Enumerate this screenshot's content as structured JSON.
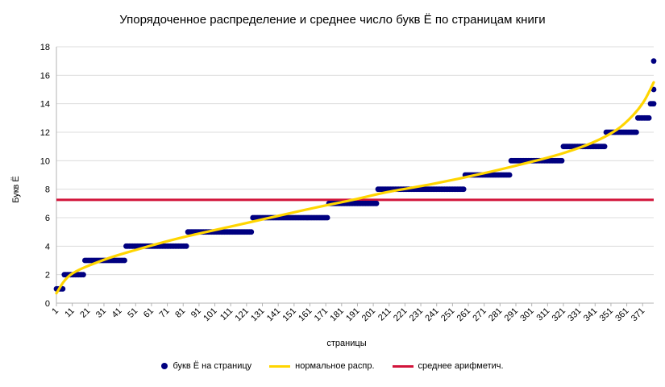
{
  "chart_data": {
    "type": "scatter",
    "title": "Упорядоченное распределение и среднее число букв Ё по страницам книги",
    "xlabel": "страницы",
    "ylabel": "Букв Ё",
    "xlim": [
      1,
      378
    ],
    "ylim": [
      0,
      18
    ],
    "y_ticks": [
      0,
      2,
      4,
      6,
      8,
      10,
      12,
      14,
      16,
      18
    ],
    "x_tick_labels": [
      "1",
      "11",
      "21",
      "31",
      "41",
      "51",
      "61",
      "71",
      "81",
      "91",
      "101",
      "111",
      "121",
      "131",
      "141",
      "151",
      "161",
      "171",
      "181",
      "191",
      "201",
      "211",
      "221",
      "231",
      "241",
      "251",
      "261",
      "271",
      "281",
      "291",
      "301",
      "311",
      "321",
      "331",
      "341",
      "351",
      "361",
      "371"
    ],
    "grid": "horizontal",
    "legend_position": "bottom",
    "series": [
      {
        "name": "букв Ё на страницу",
        "kind": "step-points",
        "color": "#000080",
        "segments": [
          {
            "x_start": 1,
            "x_end": 5,
            "y": 1
          },
          {
            "x_start": 6,
            "x_end": 18,
            "y": 2
          },
          {
            "x_start": 19,
            "x_end": 44,
            "y": 3
          },
          {
            "x_start": 45,
            "x_end": 83,
            "y": 4
          },
          {
            "x_start": 84,
            "x_end": 124,
            "y": 5
          },
          {
            "x_start": 125,
            "x_end": 172,
            "y": 6
          },
          {
            "x_start": 173,
            "x_end": 203,
            "y": 7
          },
          {
            "x_start": 204,
            "x_end": 258,
            "y": 8
          },
          {
            "x_start": 259,
            "x_end": 287,
            "y": 9
          },
          {
            "x_start": 288,
            "x_end": 320,
            "y": 10
          },
          {
            "x_start": 321,
            "x_end": 347,
            "y": 11
          },
          {
            "x_start": 348,
            "x_end": 367,
            "y": 12
          },
          {
            "x_start": 368,
            "x_end": 375,
            "y": 13
          },
          {
            "x_start": 376,
            "x_end": 378,
            "y": 14
          },
          {
            "x_start": 378,
            "x_end": 378,
            "y": 15
          },
          {
            "x_start": 378,
            "x_end": 378,
            "y": 17
          }
        ]
      },
      {
        "name": "нормальное распр.",
        "kind": "line",
        "color": "#ffd500",
        "x": [
          1,
          10,
          30,
          50,
          80,
          120,
          160,
          190,
          210,
          240,
          270,
          300,
          320,
          340,
          355,
          365,
          372,
          378
        ],
        "y": [
          0.7,
          2.0,
          3.0,
          3.7,
          4.6,
          5.6,
          6.6,
          7.3,
          7.8,
          8.4,
          9.1,
          9.9,
          10.5,
          11.3,
          12.2,
          13.2,
          14.2,
          15.5
        ]
      },
      {
        "name": "среднее арифметич.",
        "kind": "hline",
        "color": "#d2143a",
        "y": 7.25
      }
    ]
  }
}
